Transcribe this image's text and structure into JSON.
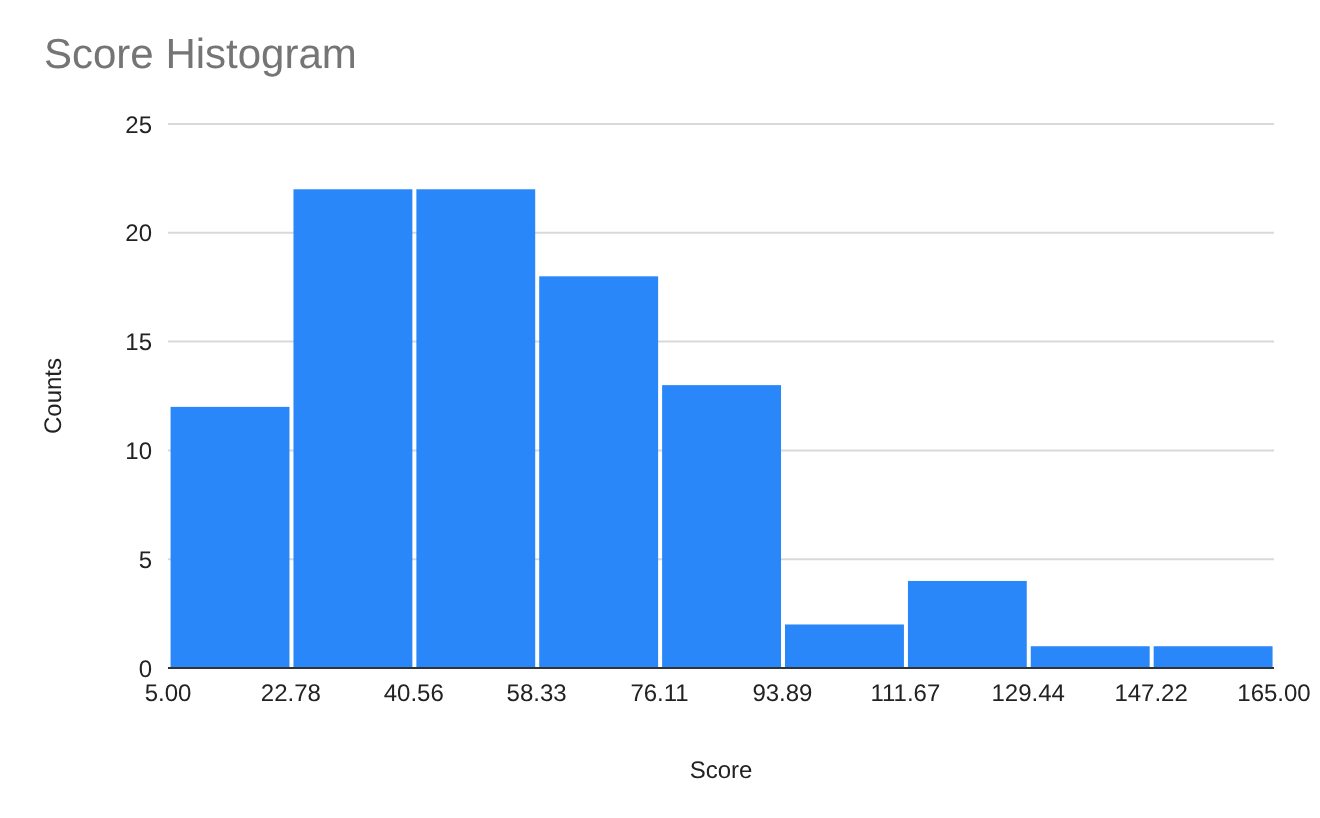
{
  "chart_data": {
    "type": "histogram",
    "title": "Score Histogram",
    "xlabel": "Score",
    "ylabel": "Counts",
    "bins": [
      5,
      22.78,
      40.56,
      58.33,
      76.11,
      93.89,
      111.67,
      129.44,
      147.22,
      165
    ],
    "values": [
      12,
      22,
      22,
      18,
      13,
      2,
      4,
      1,
      1
    ],
    "color": "#2a87f9",
    "xlim": [
      5,
      165
    ],
    "xticks": [
      {
        "value": 5,
        "label": "5.00"
      },
      {
        "value": 22.78,
        "label": "22.78"
      },
      {
        "value": 40.56,
        "label": "40.56"
      },
      {
        "value": 58.33,
        "label": "58.33"
      },
      {
        "value": 76.11,
        "label": "76.11"
      },
      {
        "value": 93.89,
        "label": "93.89"
      },
      {
        "value": 111.67,
        "label": "111.67"
      },
      {
        "value": 129.44,
        "label": "129.44"
      },
      {
        "value": 147.22,
        "label": "147.22"
      },
      {
        "value": 165,
        "label": "165.00"
      }
    ],
    "ylim": [
      0,
      25
    ],
    "yticks": [
      0,
      5,
      10,
      15,
      20,
      25
    ],
    "grid": "y"
  }
}
